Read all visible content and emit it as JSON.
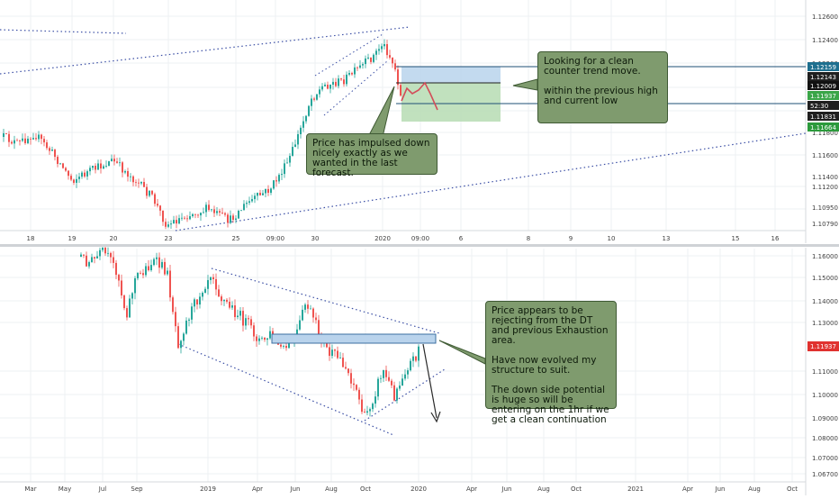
{
  "chart_data": [
    {
      "type": "candlestick",
      "x_tick_labels": [
        "18",
        "19",
        "20",
        "23",
        "25",
        "09:00",
        "30",
        "2020",
        "09:00",
        "6",
        "8",
        "9",
        "10",
        "13",
        "15",
        "16"
      ],
      "y_tick_labels": [
        "1.12600",
        "1.12400",
        "1.12200",
        "1.11800",
        "1.11600",
        "1.11400",
        "1.11200",
        "1.10950",
        "1.10790"
      ],
      "y_range": [
        1.1072,
        1.1272
      ],
      "price_tags": [
        {
          "label": "1.12159",
          "value": 1.12159,
          "color": "#1e6f8f"
        },
        {
          "label": "1.12143",
          "value": 1.12143,
          "color": "#1f1f1f"
        },
        {
          "label": "1.12009",
          "value": 1.12009,
          "color": "#111111"
        },
        {
          "label": "1.11937",
          "value": 1.11937,
          "color": "#3aa548"
        },
        {
          "label": "52:30",
          "value": 1.11885,
          "color": "#1f1f1f"
        },
        {
          "label": "1.11831",
          "value": 1.11831,
          "color": "#1f1f1f"
        },
        {
          "label": "1.11664",
          "value": 1.11664,
          "color": "#2c9a3c"
        }
      ],
      "annotations": [
        "Price has impulsed down nicely exactly as we wanted in the last forecast.",
        "Looking for a clean counter trend move.\n\nwithin the previous high and current low"
      ]
    },
    {
      "type": "candlestick",
      "x_tick_labels": [
        "Mar",
        "May",
        "Jul",
        "Sep",
        "2019",
        "Apr",
        "Jun",
        "Aug",
        "Oct",
        "2020",
        "Apr",
        "Jun",
        "Aug",
        "Oct",
        "2021",
        "Apr",
        "Jun",
        "Aug",
        "Oct"
      ],
      "y_tick_labels": [
        "1.16000",
        "1.15000",
        "1.14000",
        "1.13000",
        "1.11000",
        "1.10000",
        "1.09000",
        "1.08000",
        "1.07000",
        "1.06700"
      ],
      "y_range": [
        1.0655,
        1.1635
      ],
      "price_tags": [
        {
          "label": "1.11937",
          "value": 1.11937,
          "color": "#e0322f"
        }
      ],
      "annotations": [
        "Price appears to be rejecting from the DT and previous Exhaustion area.\n\nHave now evolved my structure to suit.\n\nThe down side potential is huge so will be entering on the 1hr if we get a clean continuation"
      ]
    }
  ],
  "colors": {
    "up": "#26a69a",
    "down": "#ef5350",
    "note_bg": "#7f9b6e",
    "trend_line": "#3b4fa5"
  }
}
